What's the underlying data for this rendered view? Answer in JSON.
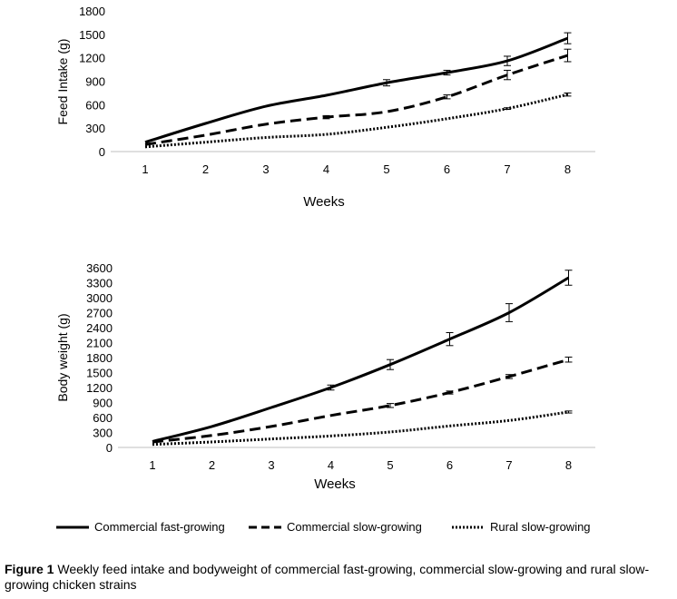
{
  "legend": [
    {
      "name": "Commercial fast-growing",
      "dash": "solid"
    },
    {
      "name": "Commercial slow-growing",
      "dash": "dashed"
    },
    {
      "name": "Rural slow-growing",
      "dash": "dotted"
    }
  ],
  "caption": {
    "label": "Figure 1",
    "text": " Weekly feed intake and bodyweight of commercial fast-growing, commercial slow-growing and rural slow-growing chicken strains"
  },
  "chart_data": [
    {
      "type": "line",
      "ylabel": "Feed Intake (g)",
      "xlabel": "Weeks",
      "ylim": [
        0,
        1800
      ],
      "yticks": [
        0,
        300,
        600,
        900,
        1200,
        1500,
        1800
      ],
      "categories": [
        "1",
        "2",
        "3",
        "4",
        "5",
        "6",
        "7",
        "8"
      ],
      "series": [
        {
          "name": "Commercial fast-growing",
          "dash": "solid",
          "values": [
            120,
            360,
            580,
            720,
            880,
            1010,
            1160,
            1450
          ],
          "errors": [
            0,
            0,
            0,
            0,
            40,
            30,
            60,
            70
          ]
        },
        {
          "name": "Commercial slow-growing",
          "dash": "dashed",
          "values": [
            90,
            210,
            350,
            440,
            510,
            700,
            980,
            1230
          ],
          "errors": [
            0,
            0,
            0,
            20,
            0,
            25,
            60,
            80
          ]
        },
        {
          "name": "Rural slow-growing",
          "dash": "dotted",
          "values": [
            60,
            120,
            180,
            220,
            310,
            420,
            550,
            730
          ],
          "errors": [
            0,
            0,
            0,
            0,
            0,
            0,
            10,
            20
          ]
        }
      ]
    },
    {
      "type": "line",
      "ylabel": "Body weight (g)",
      "xlabel": "Weeks",
      "ylim": [
        0,
        3600
      ],
      "yticks": [
        0,
        300,
        600,
        900,
        1200,
        1500,
        1800,
        2100,
        2400,
        2700,
        3000,
        3300,
        3600
      ],
      "categories": [
        "1",
        "2",
        "3",
        "4",
        "5",
        "6",
        "7",
        "8"
      ],
      "series": [
        {
          "name": "Commercial fast-growing",
          "dash": "solid",
          "values": [
            120,
            420,
            800,
            1200,
            1660,
            2170,
            2700,
            3400
          ],
          "errors": [
            0,
            0,
            0,
            50,
            100,
            130,
            180,
            150
          ]
        },
        {
          "name": "Commercial slow-growing",
          "dash": "dashed",
          "values": [
            110,
            240,
            420,
            640,
            840,
            1100,
            1420,
            1760
          ],
          "errors": [
            0,
            0,
            0,
            0,
            40,
            30,
            40,
            50
          ]
        },
        {
          "name": "Rural slow-growing",
          "dash": "dotted",
          "values": [
            60,
            110,
            170,
            230,
            310,
            430,
            540,
            710
          ],
          "errors": [
            0,
            0,
            0,
            0,
            0,
            0,
            0,
            20
          ]
        }
      ]
    }
  ]
}
